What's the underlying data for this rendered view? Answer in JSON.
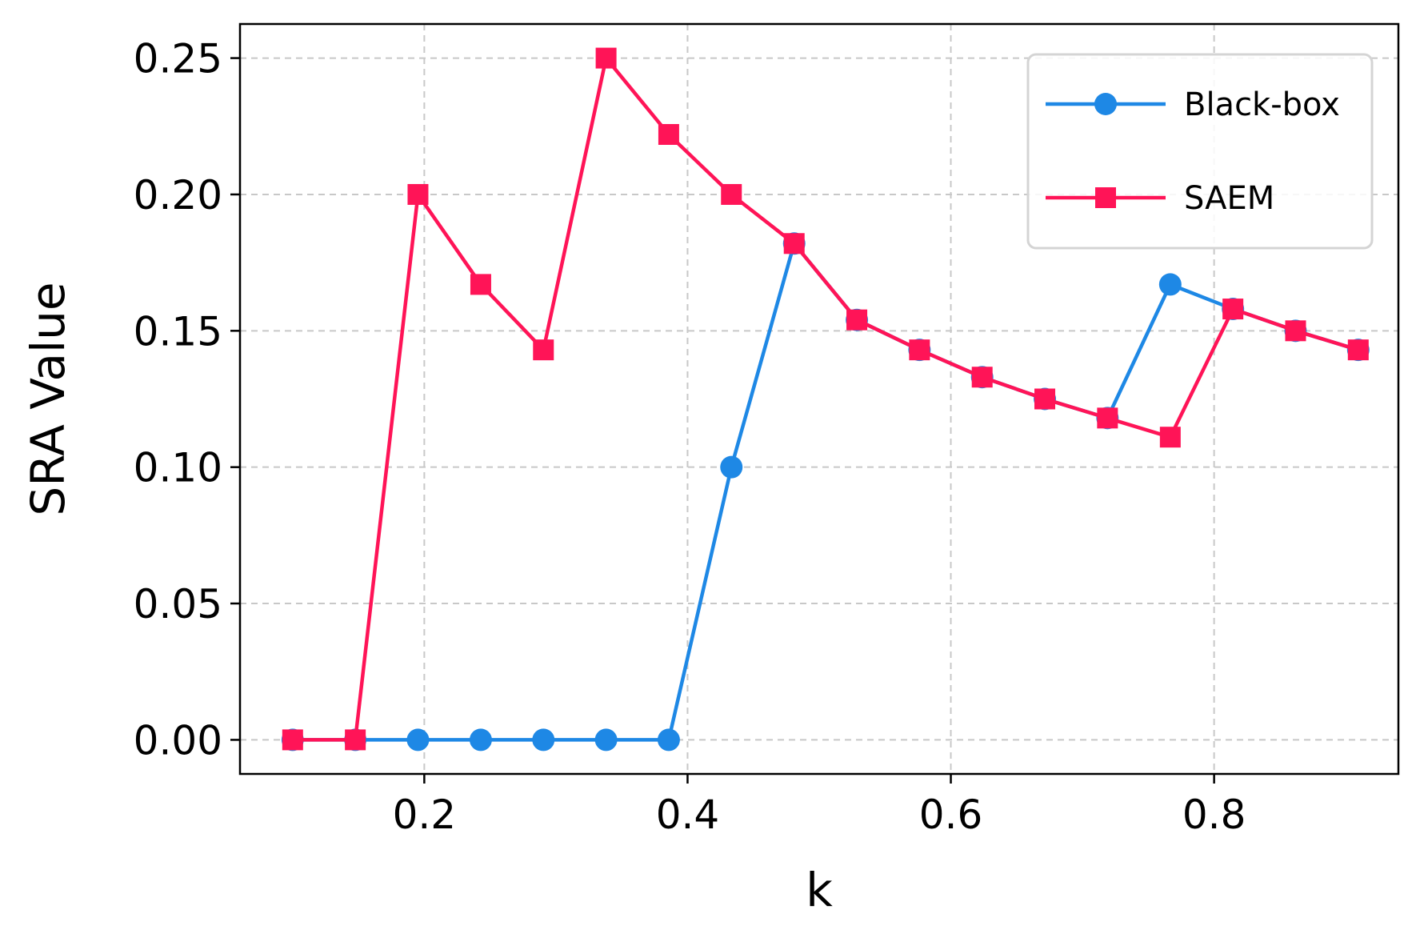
{
  "chart_data": {
    "type": "line",
    "xlabel": "k",
    "ylabel": "SRA Value",
    "xlim": [
      0.06,
      0.94
    ],
    "ylim": [
      -0.0125,
      0.2625
    ],
    "xticks": [
      0.2,
      0.4,
      0.6,
      0.8
    ],
    "xtick_labels": [
      "0.2",
      "0.4",
      "0.6",
      "0.8"
    ],
    "yticks": [
      0.0,
      0.05,
      0.1,
      0.15,
      0.2,
      0.25
    ],
    "ytick_labels": [
      "0.00",
      "0.05",
      "0.10",
      "0.15",
      "0.20",
      "0.25"
    ],
    "grid": true,
    "legend_position": "top-right",
    "series": [
      {
        "name": "Black-box",
        "color": "#1e88e5",
        "marker": "circle",
        "x": [
          0.1,
          0.1476,
          0.1952,
          0.2429,
          0.2905,
          0.3381,
          0.3857,
          0.4333,
          0.481,
          0.5286,
          0.5762,
          0.6238,
          0.6714,
          0.719,
          0.7667,
          0.8143,
          0.8619,
          0.9095
        ],
        "values": [
          0.0,
          0.0,
          0.0,
          0.0,
          0.0,
          0.0,
          0.0,
          0.1,
          0.182,
          0.154,
          0.143,
          0.133,
          0.125,
          0.118,
          0.167,
          0.158,
          0.15,
          0.143
        ]
      },
      {
        "name": "SAEM",
        "color": "#ff1457",
        "marker": "square",
        "x": [
          0.1,
          0.1476,
          0.1952,
          0.2429,
          0.2905,
          0.3381,
          0.3857,
          0.4333,
          0.481,
          0.5286,
          0.5762,
          0.6238,
          0.6714,
          0.719,
          0.7667,
          0.8143,
          0.8619,
          0.9095
        ],
        "values": [
          0.0,
          0.0,
          0.2,
          0.167,
          0.143,
          0.25,
          0.222,
          0.2,
          0.182,
          0.154,
          0.143,
          0.133,
          0.125,
          0.118,
          0.111,
          0.158,
          0.15,
          0.143
        ]
      }
    ]
  }
}
